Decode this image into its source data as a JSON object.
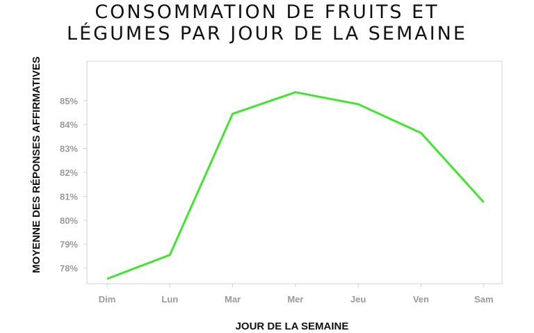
{
  "chart_data": {
    "type": "line",
    "title_lines": [
      "CONSOMMATION DE FRUITS ET",
      "LÉGUMES PAR JOUR DE LA SEMAINE"
    ],
    "xlabel": "JOUR DE LA SEMAINE",
    "ylabel": "MOYENNE DES RÉPONSES AFFIRMATIVES",
    "categories": [
      "Dim",
      "Lun",
      "Mar",
      "Mer",
      "Jeu",
      "Ven",
      "Sam"
    ],
    "series": [
      {
        "values": [
          77.55,
          78.55,
          84.45,
          85.35,
          84.85,
          83.65,
          80.75
        ]
      }
    ],
    "yticks": [
      "78%",
      "79%",
      "80%",
      "81%",
      "82%",
      "83%",
      "84%",
      "85%"
    ],
    "ytick_values": [
      78,
      79,
      80,
      81,
      82,
      83,
      84,
      85
    ],
    "ylim": [
      77.35,
      86.65
    ],
    "grid": false,
    "line_color": "#3ee62c",
    "frame_color": "#d0d0d0"
  }
}
